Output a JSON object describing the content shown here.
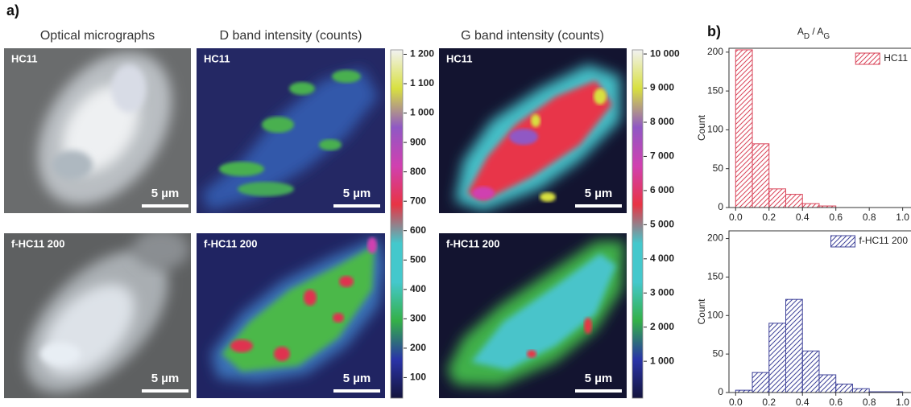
{
  "panel_a": {
    "label": "a)",
    "column_titles": [
      "Optical micrographs",
      "D band intensity (counts)",
      "G band intensity (counts)"
    ],
    "samples": [
      "HC11",
      "f-HC11 200"
    ],
    "scale_bar": "5 µm"
  },
  "panel_b": {
    "label": "b)"
  },
  "chart_data": [
    {
      "type": "colorbar",
      "colors": [
        "#14143c",
        "#2a34a8",
        "#34b048",
        "#44c8cc",
        "#44c8cc",
        "#e83444",
        "#d040b0",
        "#9058c4",
        "#d8e040",
        "#f2f2f2"
      ],
      "ylim": [
        30,
        1215
      ],
      "yticks": [
        {
          "value": 1200,
          "label": "1 200"
        },
        {
          "value": 1100,
          "label": "1 100"
        },
        {
          "value": 1000,
          "label": "1 000"
        },
        900,
        800,
        700,
        600,
        500,
        400,
        300,
        200,
        100
      ]
    },
    {
      "type": "colorbar",
      "colors": [
        "#14143c",
        "#2a34a8",
        "#34b048",
        "#44c8cc",
        "#44c8cc",
        "#e83444",
        "#d040b0",
        "#9058c4",
        "#d8e040",
        "#f2f2f2"
      ],
      "ylim": [
        -80,
        10120
      ],
      "yticks": [
        {
          "value": 10000,
          "label": "10 000"
        },
        {
          "value": 9000,
          "label": "9 000"
        },
        {
          "value": 8000,
          "label": "8 000"
        },
        {
          "value": 7000,
          "label": "7 000"
        },
        {
          "value": 6000,
          "label": "6 000"
        },
        {
          "value": 5000,
          "label": "5 000"
        },
        {
          "value": 4000,
          "label": "4 000"
        },
        {
          "value": 3000,
          "label": "3 000"
        },
        {
          "value": 2000,
          "label": "2 000"
        },
        {
          "value": 1000,
          "label": "1 000"
        }
      ]
    },
    {
      "type": "histogram",
      "title_parts": [
        "A",
        "D",
        " / A",
        "G"
      ],
      "y_label": "Count",
      "bins": [
        0,
        0.1,
        0.2,
        0.3,
        0.4,
        0.5,
        0.6,
        0.7,
        0.8,
        0.9,
        1.0
      ],
      "series": [
        {
          "name": "HC11",
          "color": "#d9455a",
          "values": [
            203,
            82,
            24,
            17,
            5,
            2,
            0,
            0,
            0,
            0
          ]
        }
      ],
      "xlim": [
        -0.04,
        1.05
      ],
      "xticks": [
        {
          "value": 0,
          "label": "0.0"
        },
        {
          "value": 0.2,
          "label": "0.2"
        },
        {
          "value": 0.4,
          "label": "0.4"
        },
        {
          "value": 0.6,
          "label": "0.6"
        },
        {
          "value": 0.8,
          "label": "0.8"
        },
        {
          "value": 1.0,
          "label": "1.0"
        }
      ],
      "ylim": [
        0,
        205
      ],
      "yticks": [
        0,
        50,
        100,
        150,
        200
      ],
      "legend": "upper right"
    },
    {
      "type": "histogram",
      "y_label": "Count",
      "bins": [
        0,
        0.1,
        0.2,
        0.3,
        0.4,
        0.5,
        0.6,
        0.7,
        0.8,
        0.9,
        1.0
      ],
      "series": [
        {
          "name": "f-HC11 200",
          "color": "#40449a",
          "values": [
            3,
            26,
            90,
            121,
            54,
            23,
            11,
            5,
            1,
            1
          ]
        }
      ],
      "xlim": [
        -0.04,
        1.05
      ],
      "xticks": [
        {
          "value": 0,
          "label": "0.0"
        },
        {
          "value": 0.2,
          "label": "0.2"
        },
        {
          "value": 0.4,
          "label": "0.4"
        },
        {
          "value": 0.6,
          "label": "0.6"
        },
        {
          "value": 0.8,
          "label": "0.8"
        },
        {
          "value": 1.0,
          "label": "1.0"
        }
      ],
      "ylim": [
        0,
        210
      ],
      "yticks": [
        0,
        50,
        100,
        150,
        200
      ],
      "legend": "upper right"
    }
  ]
}
